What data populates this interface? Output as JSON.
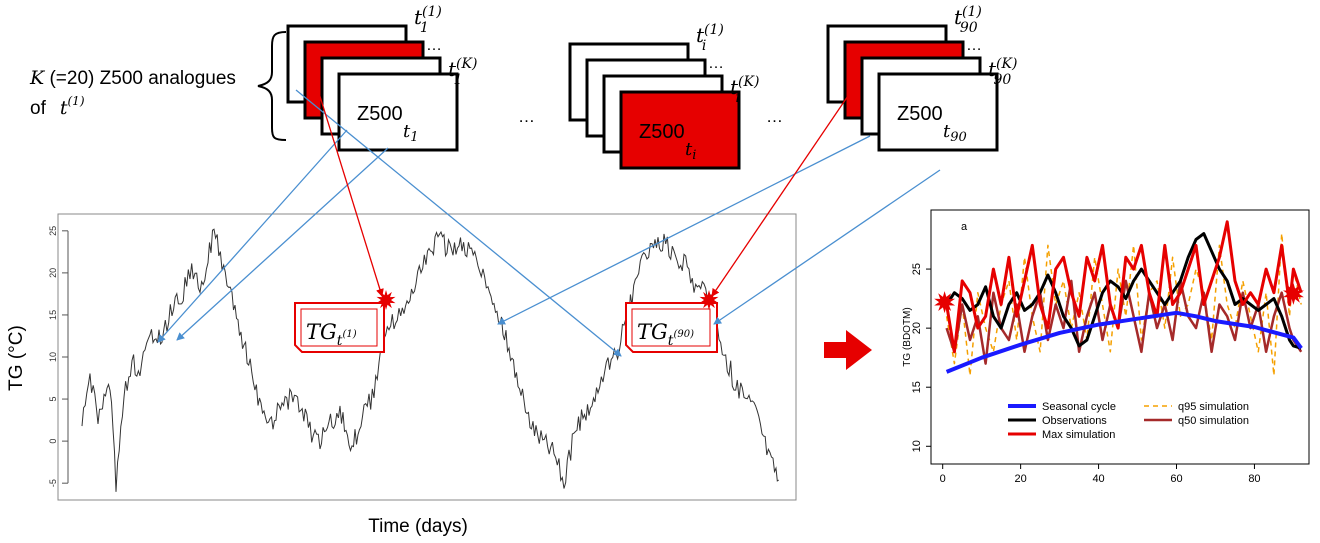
{
  "analogues_label": {
    "k_italic": "K",
    "rest": " (=20) Z500 analogues",
    "of": "of",
    "t": "t",
    "sup": "(1)"
  },
  "ellipsis": "…",
  "ellipsis_small": "…",
  "z500": "Z500",
  "stacks": [
    {
      "top_sub": "1",
      "top_sup": "(1)",
      "k_sub": "1",
      "k_sup": "(K)",
      "front_sub": "1",
      "red_layer": 1,
      "front_red": false
    },
    {
      "top_sub": "i",
      "top_sup": "(1)",
      "k_sub": "i",
      "k_sup": "(K)",
      "front_sub": "i",
      "red_layer": -1,
      "front_red": true
    },
    {
      "top_sub": "90",
      "top_sup": "(1)",
      "k_sub": "90",
      "k_sup": "(K)",
      "front_sub": "90",
      "red_layer": 1,
      "front_red": false
    }
  ],
  "tg_boxes": [
    {
      "main": "TG",
      "sub": "t",
      "sup": "(1)"
    },
    {
      "main": "TG",
      "sub": "t",
      "sup": "(90)"
    }
  ],
  "left_plot": {
    "ylabel": "TG (°C)",
    "xlabel": "Time (days)",
    "yticks": [
      "-5",
      "0",
      "5",
      "10",
      "15",
      "20",
      "25"
    ],
    "ylim": [
      -7,
      27
    ]
  },
  "colors": {
    "red": "#e60000",
    "blue": "#4a8fd0",
    "dark": "#333333"
  },
  "chart_data": {
    "type": "line",
    "panel_label": "a",
    "ylabel": "TG (BDOTM)",
    "xlabel": "",
    "xlim": [
      -3,
      94
    ],
    "ylim": [
      8.5,
      30
    ],
    "xticks": [
      0,
      20,
      40,
      60,
      80
    ],
    "yticks": [
      10,
      15,
      20,
      25
    ],
    "star_values": {
      "start": 22.2,
      "end": 22.9
    },
    "series": [
      {
        "name": "Seasonal cycle",
        "color": "#1a1aff",
        "width": 4,
        "dash": "",
        "x": [
          1,
          10,
          20,
          30,
          40,
          50,
          60,
          65,
          70,
          80,
          90,
          92
        ],
        "y": [
          16.3,
          17.5,
          18.6,
          19.6,
          20.3,
          20.8,
          21.3,
          21.0,
          20.6,
          20.1,
          19.2,
          18.3
        ]
      },
      {
        "name": "Observations",
        "color": "#000000",
        "width": 3,
        "dash": "",
        "x": [
          1,
          3,
          5,
          7,
          9,
          11,
          13,
          15,
          17,
          19,
          21,
          23,
          25,
          27,
          29,
          31,
          33,
          35,
          37,
          39,
          41,
          43,
          45,
          47,
          49,
          51,
          53,
          55,
          57,
          59,
          61,
          63,
          65,
          67,
          69,
          71,
          73,
          75,
          77,
          79,
          81,
          83,
          85,
          87,
          89,
          90,
          92
        ],
        "y": [
          22,
          23,
          22.5,
          21.5,
          22,
          23.5,
          21,
          20,
          22,
          23,
          21.5,
          22,
          23,
          24.5,
          23,
          21,
          20,
          18.5,
          19,
          21,
          23,
          24,
          23.5,
          22.5,
          24,
          25,
          24,
          23,
          22,
          23,
          24,
          26,
          27.5,
          28,
          26.5,
          25,
          24,
          22,
          22.5,
          22,
          21.5,
          22,
          22.5,
          21,
          19,
          18.5,
          18.3
        ]
      },
      {
        "name": "Max simulation",
        "color": "#e60000",
        "width": 3,
        "dash": "",
        "x": [
          1,
          3,
          5,
          7,
          9,
          11,
          13,
          15,
          17,
          19,
          21,
          23,
          25,
          27,
          29,
          31,
          33,
          35,
          37,
          39,
          41,
          43,
          45,
          47,
          49,
          51,
          53,
          55,
          57,
          59,
          61,
          63,
          65,
          67,
          69,
          71,
          73,
          75,
          77,
          79,
          81,
          83,
          85,
          87,
          89,
          90,
          92
        ],
        "y": [
          22,
          18,
          24,
          23,
          20,
          21,
          25,
          22,
          26,
          21,
          24,
          27,
          22,
          20,
          25,
          26,
          23,
          21,
          26,
          24,
          27,
          22,
          20,
          26,
          25,
          27,
          23,
          21,
          27,
          22,
          23,
          25,
          27,
          22,
          24,
          26,
          29,
          24,
          22,
          23,
          22,
          25,
          23,
          27,
          22,
          25,
          23
        ]
      },
      {
        "name": "q95 simulation",
        "color": "#f5a000",
        "width": 1.5,
        "dash": "5,4",
        "x": [
          1,
          3,
          5,
          7,
          9,
          11,
          13,
          15,
          17,
          19,
          21,
          23,
          25,
          27,
          29,
          31,
          33,
          35,
          37,
          39,
          41,
          43,
          45,
          47,
          49,
          51,
          53,
          55,
          57,
          59,
          61,
          63,
          65,
          67,
          69,
          71,
          73,
          75,
          77,
          79,
          81,
          83,
          85,
          87,
          89,
          90,
          92
        ],
        "y": [
          21,
          17,
          22,
          16,
          23,
          20,
          18,
          22,
          24,
          19,
          26,
          21,
          18,
          27,
          22,
          24,
          20,
          23,
          19,
          26,
          22,
          18,
          25,
          21,
          27,
          19,
          23,
          24,
          20,
          26,
          21,
          22,
          25,
          23,
          19,
          27,
          22,
          20,
          24,
          21,
          18,
          23,
          16,
          28,
          21,
          25,
          22
        ]
      },
      {
        "name": "q50 simulation",
        "color": "#a52a2a",
        "width": 2.5,
        "dash": "",
        "x": [
          1,
          3,
          5,
          7,
          9,
          11,
          13,
          15,
          17,
          19,
          21,
          23,
          25,
          27,
          29,
          31,
          33,
          35,
          37,
          39,
          41,
          43,
          45,
          47,
          49,
          51,
          53,
          55,
          57,
          59,
          61,
          63,
          65,
          67,
          69,
          71,
          73,
          75,
          77,
          79,
          81,
          83,
          85,
          87,
          89,
          90,
          92
        ],
        "y": [
          20,
          18,
          22,
          19,
          21,
          17,
          23,
          20,
          19,
          22,
          18,
          21,
          23,
          19,
          22,
          20,
          24,
          18,
          21,
          23,
          19,
          22,
          20,
          24,
          21,
          18,
          23,
          20,
          22,
          19,
          24,
          21,
          20,
          23,
          18,
          22,
          21,
          19,
          23,
          20,
          22,
          18,
          21,
          23,
          20,
          19,
          18
        ]
      }
    ],
    "legend": [
      {
        "name": "Seasonal cycle",
        "color": "#1a1aff",
        "width": 4,
        "dash": ""
      },
      {
        "name": "Observations",
        "color": "#000000",
        "width": 3,
        "dash": ""
      },
      {
        "name": "Max simulation",
        "color": "#e60000",
        "width": 3,
        "dash": ""
      },
      {
        "name": "q95 simulation",
        "color": "#f5a000",
        "width": 1.5,
        "dash": "5,4"
      },
      {
        "name": "q50 simulation",
        "color": "#a52a2a",
        "width": 2.5,
        "dash": ""
      }
    ]
  }
}
